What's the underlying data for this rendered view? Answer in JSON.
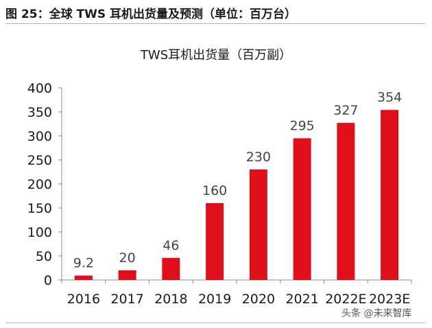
{
  "caption": {
    "fig_label": "图",
    "fig_number": "25",
    "text": "：全球 TWS 耳机出货量及预测（单位：百万台）"
  },
  "chart_data": {
    "type": "bar",
    "title": "TWS耳机出货量（百万副）",
    "categories": [
      "2016",
      "2017",
      "2018",
      "2019",
      "2020",
      "2021",
      "2022E",
      "2023E"
    ],
    "values": [
      9.2,
      20,
      46,
      160,
      230,
      295,
      327,
      354
    ],
    "value_labels": [
      "9.2",
      "20",
      "46",
      "160",
      "230",
      "295",
      "327",
      "354"
    ],
    "ylim": [
      0,
      400
    ],
    "yticks": [
      0,
      50,
      100,
      150,
      200,
      250,
      300,
      350,
      400
    ],
    "xlabel": "",
    "ylabel": "",
    "grid": false,
    "bar_color": "#e0101a",
    "axis_color": "#888888",
    "text_color": "#1a1a1a",
    "label_color": "#444444"
  },
  "watermark": "头条 @未来智库"
}
